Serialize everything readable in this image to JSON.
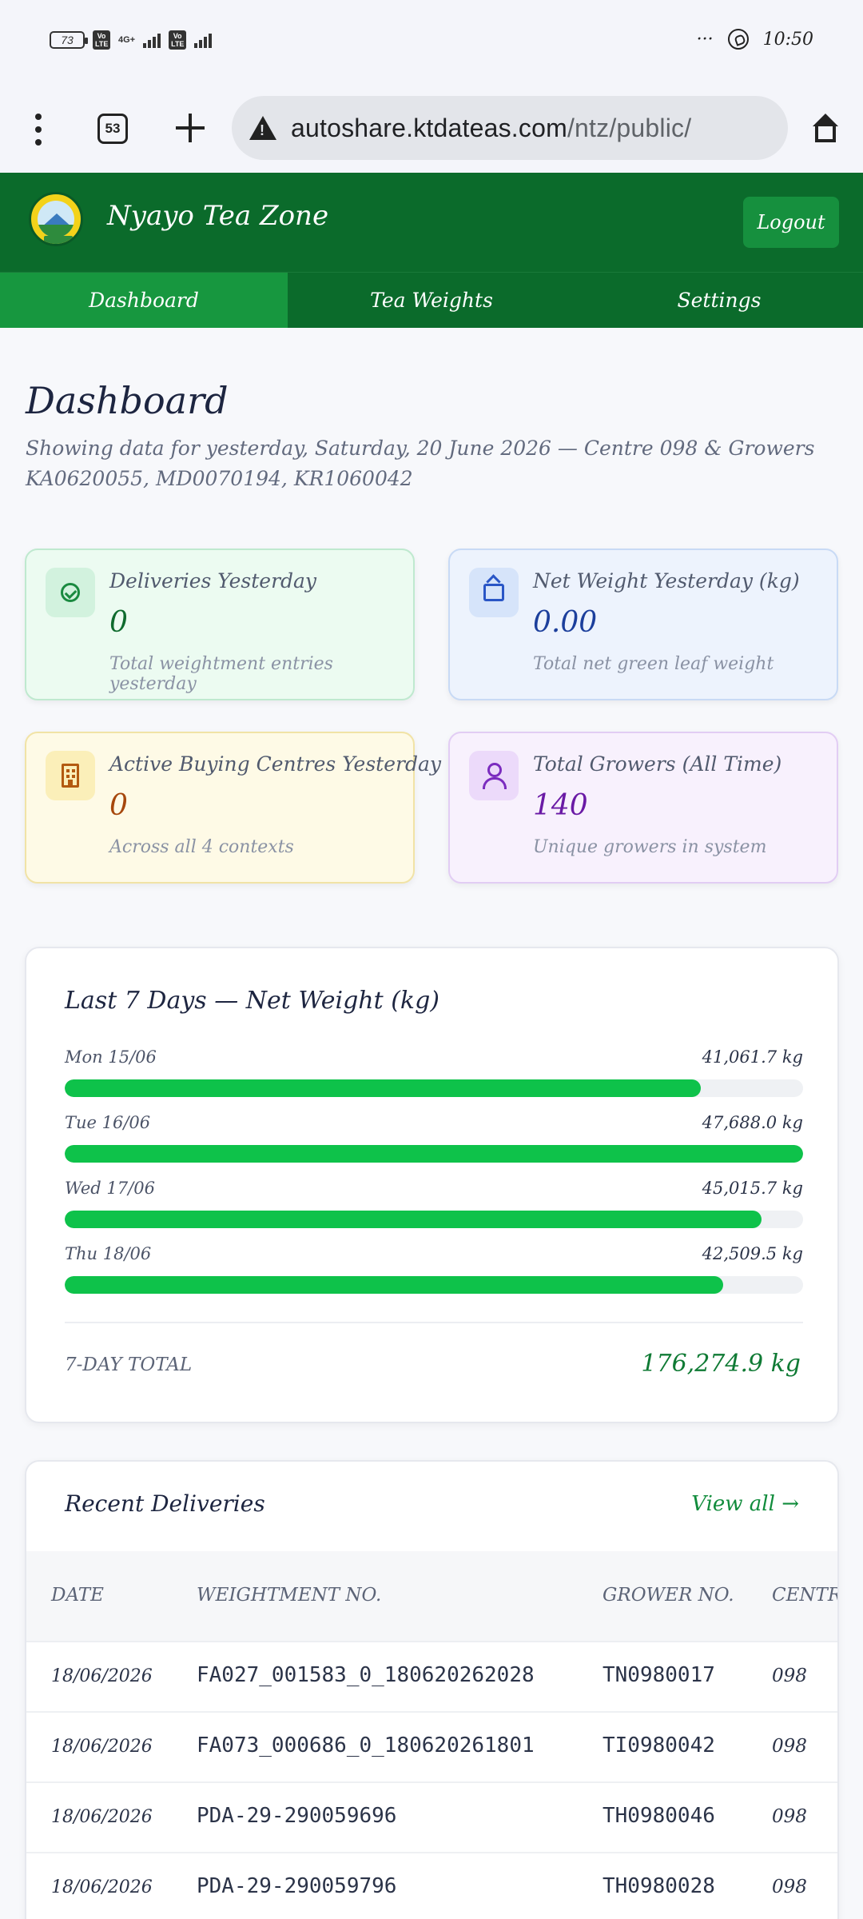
{
  "status_bar": {
    "battery": "73",
    "net1": "Vo LTE",
    "net_type": "4G+",
    "net2": "Vo LTE",
    "time": "10:50",
    "more": "···"
  },
  "browser": {
    "tabs_count": "53",
    "url_domain": "autoshare.ktdateas.com",
    "url_path": "/ntz/public/"
  },
  "header": {
    "brand": "Nyayo Tea Zone",
    "logout_label": "Logout"
  },
  "nav": {
    "tabs": [
      {
        "label": "Dashboard",
        "active": true
      },
      {
        "label": "Tea Weights",
        "active": false
      },
      {
        "label": "Settings",
        "active": false
      }
    ]
  },
  "dashboard": {
    "title": "Dashboard",
    "subtitle": "Showing data for yesterday, Saturday, 20 June 2026 — Centre 098 & Growers KA0620055, MD0070194, KR1060042"
  },
  "cards": [
    {
      "label": "Deliveries Yesterday",
      "value": "0",
      "note": "Total weightment entries yesterday",
      "icon": "check-circle-icon"
    },
    {
      "label": "Net Weight Yesterday (kg)",
      "value": "0.00",
      "note": "Total net green leaf weight",
      "icon": "package-icon"
    },
    {
      "label": "Active Buying Centres Yesterday",
      "value": "0",
      "note": "Across all 4 contexts",
      "icon": "building-icon"
    },
    {
      "label": "Total Growers (All Time)",
      "value": "140",
      "note": "Unique growers in system",
      "icon": "users-icon"
    }
  ],
  "chart_data": {
    "type": "bar",
    "title": "Last 7 Days — Net Weight (kg)",
    "categories": [
      "Mon 15/06",
      "Tue 16/06",
      "Wed 17/06",
      "Thu 18/06"
    ],
    "values": [
      41061.7,
      47688.0,
      45015.7,
      42509.5
    ],
    "value_labels": [
      "41,061.7 kg",
      "47,688.0 kg",
      "45,015.7 kg",
      "42,509.5 kg"
    ],
    "total_label": "7-DAY TOTAL",
    "total_value": "176,274.9 kg",
    "bar_color": "#0ec24a"
  },
  "deliveries": {
    "title": "Recent Deliveries",
    "view_all": "View all →",
    "columns": [
      "DATE",
      "WEIGHTMENT NO.",
      "GROWER NO.",
      "CENTRE"
    ],
    "rows": [
      [
        "18/06/2026",
        "FA027_001583_0_180620262028",
        "TN0980017",
        "098"
      ],
      [
        "18/06/2026",
        "FA073_000686_0_180620261801",
        "TI0980042",
        "098"
      ],
      [
        "18/06/2026",
        "PDA-29-290059696",
        "TH0980046",
        "098"
      ],
      [
        "18/06/2026",
        "PDA-29-290059796",
        "TH0980028",
        "098"
      ]
    ]
  }
}
